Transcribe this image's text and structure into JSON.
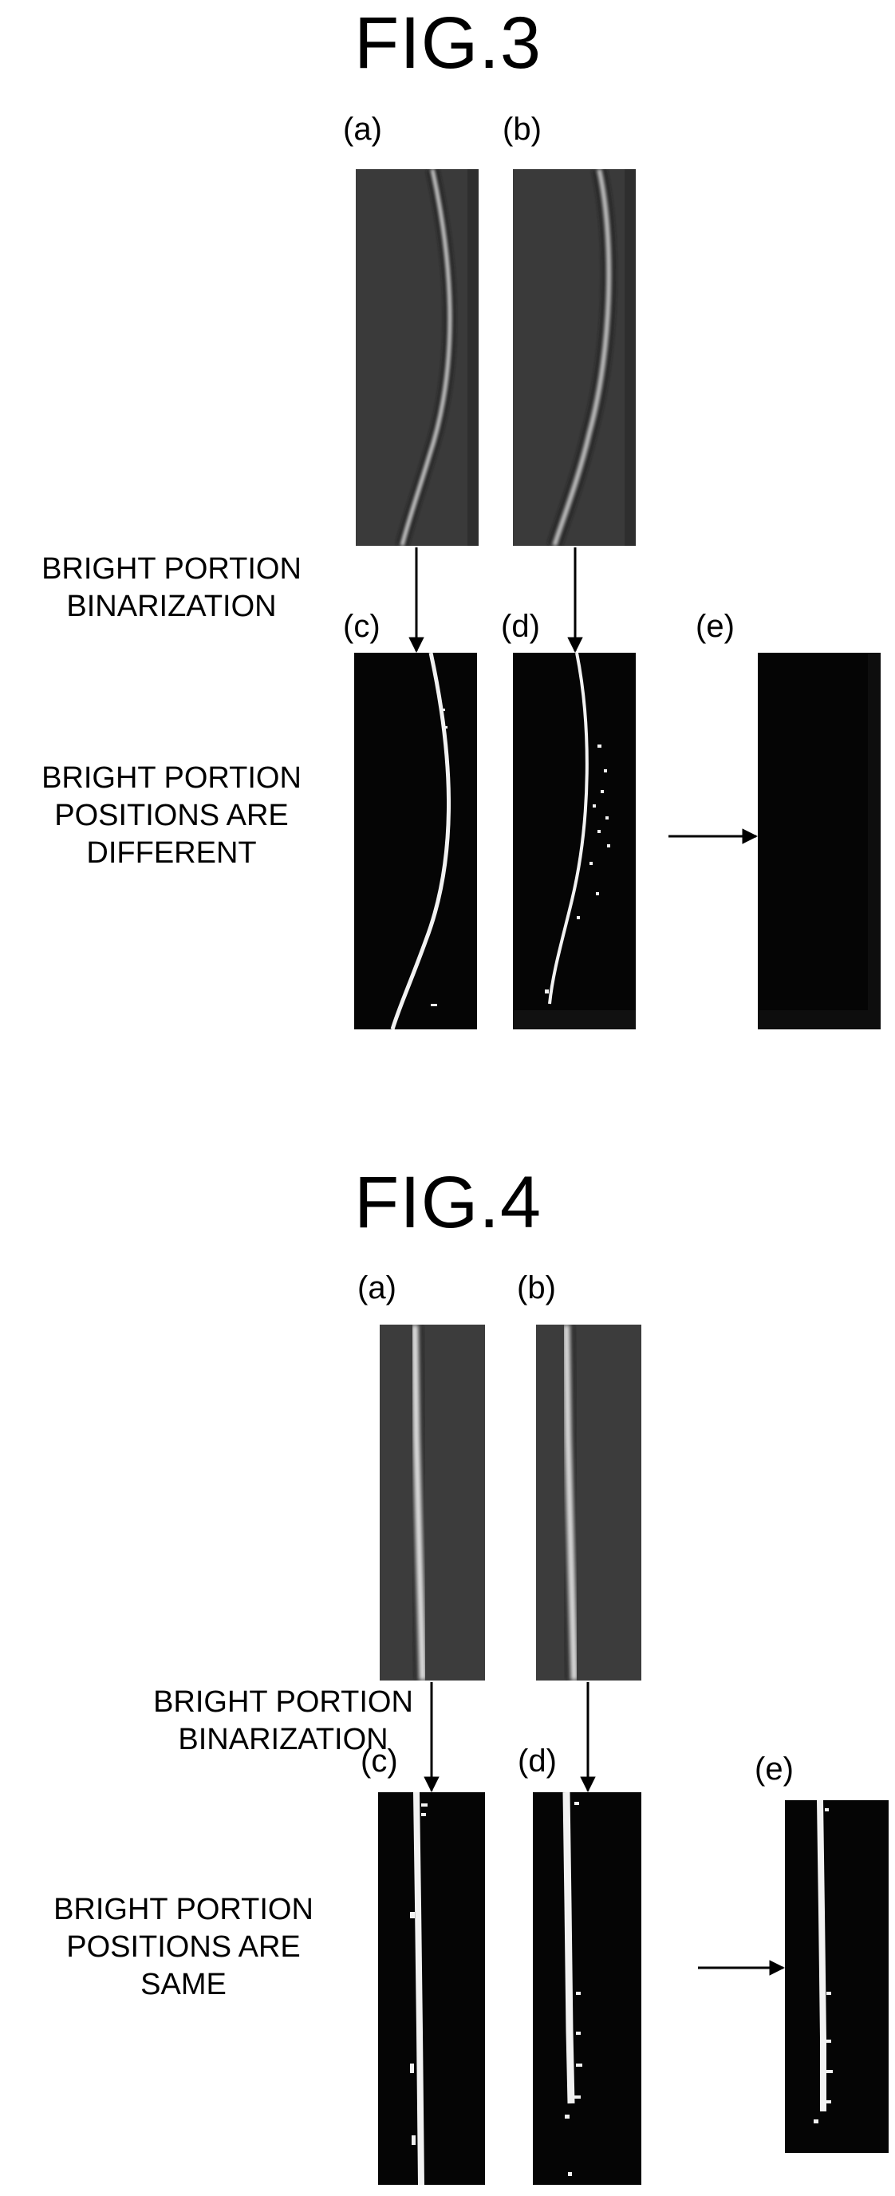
{
  "fig3": {
    "title": "FIG.3",
    "labels": {
      "a": "(a)",
      "b": "(b)",
      "c": "(c)",
      "d": "(d)",
      "e": "(e)"
    },
    "binarization_note": "BRIGHT PORTION\nBINARIZATION",
    "result_note": "BRIGHT PORTION\nPOSITIONS ARE\nDIFFERENT"
  },
  "fig4": {
    "title": "FIG.4",
    "labels": {
      "a": "(a)",
      "b": "(b)",
      "c": "(c)",
      "d": "(d)",
      "e": "(e)"
    },
    "binarization_note": "BRIGHT PORTION\nBINARIZATION",
    "result_note": "BRIGHT PORTION\nPOSITIONS ARE\nSAME"
  },
  "colors": {
    "grayscale_background": "#3a3a3a",
    "binary_background": "#050505",
    "bright_line": "#f2f2f2",
    "arrow": "#000000"
  }
}
